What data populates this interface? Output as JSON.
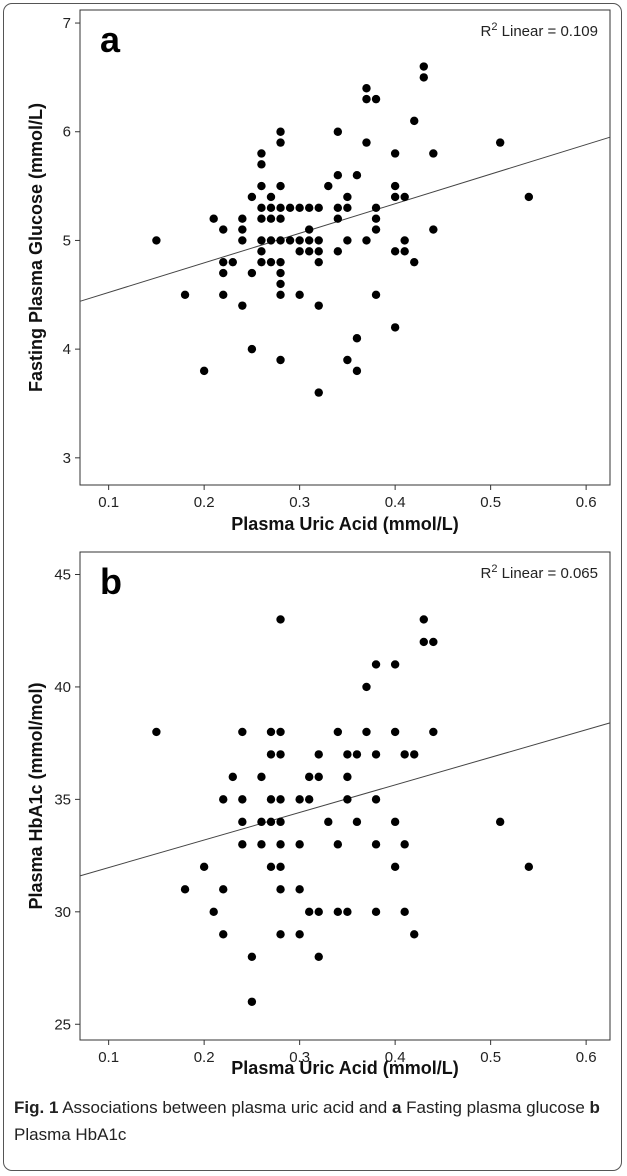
{
  "chart_data": [
    {
      "type": "scatter",
      "panel_label": "a",
      "xlabel": "Plasma Uric Acid (mmol/L)",
      "ylabel": "Fasting Plasma Glucose (mmol/L)",
      "xlim": [
        0.07,
        0.625
      ],
      "ylim": [
        2.75,
        7.12
      ],
      "xticks": [
        0.1,
        0.2,
        0.3,
        0.4,
        0.5,
        0.6
      ],
      "yticks": [
        3,
        4,
        5,
        6,
        7
      ],
      "xtick_labels": [
        "0.1",
        "0.2",
        "0.3",
        "0.4",
        "0.5",
        "0.6"
      ],
      "ytick_labels": [
        "3",
        "4",
        "5",
        "6",
        "7"
      ],
      "annotation": {
        "prefix": "R",
        "sup": "2",
        "text": " Linear = 0.109"
      },
      "fit_line": {
        "x": [
          0.07,
          0.625
        ],
        "y": [
          4.44,
          5.95
        ]
      },
      "points": [
        [
          0.15,
          5.0
        ],
        [
          0.18,
          4.5
        ],
        [
          0.2,
          3.8
        ],
        [
          0.21,
          5.2
        ],
        [
          0.22,
          5.1
        ],
        [
          0.22,
          4.8
        ],
        [
          0.22,
          4.7
        ],
        [
          0.22,
          4.5
        ],
        [
          0.23,
          4.8
        ],
        [
          0.24,
          5.2
        ],
        [
          0.24,
          5.1
        ],
        [
          0.24,
          5.0
        ],
        [
          0.24,
          4.4
        ],
        [
          0.25,
          5.4
        ],
        [
          0.25,
          4.7
        ],
        [
          0.25,
          4.0
        ],
        [
          0.26,
          5.8
        ],
        [
          0.26,
          5.7
        ],
        [
          0.26,
          5.5
        ],
        [
          0.26,
          5.3
        ],
        [
          0.26,
          5.2
        ],
        [
          0.26,
          5.0
        ],
        [
          0.26,
          4.9
        ],
        [
          0.26,
          4.8
        ],
        [
          0.27,
          5.4
        ],
        [
          0.27,
          5.3
        ],
        [
          0.27,
          5.2
        ],
        [
          0.27,
          5.0
        ],
        [
          0.27,
          4.8
        ],
        [
          0.28,
          6.0
        ],
        [
          0.28,
          5.9
        ],
        [
          0.28,
          5.5
        ],
        [
          0.28,
          5.3
        ],
        [
          0.28,
          5.2
        ],
        [
          0.28,
          5.0
        ],
        [
          0.28,
          4.8
        ],
        [
          0.28,
          4.7
        ],
        [
          0.28,
          4.6
        ],
        [
          0.28,
          4.5
        ],
        [
          0.28,
          3.9
        ],
        [
          0.29,
          5.3
        ],
        [
          0.29,
          5.0
        ],
        [
          0.3,
          5.3
        ],
        [
          0.3,
          5.0
        ],
        [
          0.3,
          4.9
        ],
        [
          0.3,
          4.5
        ],
        [
          0.31,
          5.3
        ],
        [
          0.31,
          5.1
        ],
        [
          0.31,
          5.0
        ],
        [
          0.31,
          4.9
        ],
        [
          0.32,
          5.3
        ],
        [
          0.32,
          5.0
        ],
        [
          0.32,
          4.9
        ],
        [
          0.32,
          4.8
        ],
        [
          0.32,
          4.4
        ],
        [
          0.32,
          3.6
        ],
        [
          0.33,
          5.5
        ],
        [
          0.34,
          6.0
        ],
        [
          0.34,
          5.6
        ],
        [
          0.34,
          5.3
        ],
        [
          0.34,
          5.2
        ],
        [
          0.34,
          4.9
        ],
        [
          0.35,
          5.4
        ],
        [
          0.35,
          5.3
        ],
        [
          0.35,
          5.0
        ],
        [
          0.35,
          3.9
        ],
        [
          0.36,
          5.6
        ],
        [
          0.36,
          4.1
        ],
        [
          0.36,
          3.8
        ],
        [
          0.37,
          6.4
        ],
        [
          0.37,
          6.3
        ],
        [
          0.37,
          5.9
        ],
        [
          0.37,
          5.0
        ],
        [
          0.38,
          6.3
        ],
        [
          0.38,
          5.3
        ],
        [
          0.38,
          5.2
        ],
        [
          0.38,
          5.1
        ],
        [
          0.38,
          4.5
        ],
        [
          0.4,
          5.8
        ],
        [
          0.4,
          5.5
        ],
        [
          0.4,
          5.4
        ],
        [
          0.4,
          4.9
        ],
        [
          0.4,
          4.2
        ],
        [
          0.41,
          5.4
        ],
        [
          0.41,
          5.0
        ],
        [
          0.41,
          4.9
        ],
        [
          0.42,
          6.1
        ],
        [
          0.42,
          4.8
        ],
        [
          0.43,
          6.6
        ],
        [
          0.43,
          6.5
        ],
        [
          0.44,
          5.8
        ],
        [
          0.44,
          5.1
        ],
        [
          0.51,
          5.9
        ],
        [
          0.54,
          5.4
        ]
      ]
    },
    {
      "type": "scatter",
      "panel_label": "b",
      "xlabel": "Plasma Uric Acid (mmol/L)",
      "ylabel": "Plasma HbA1c (mmol/mol)",
      "xlim": [
        0.07,
        0.625
      ],
      "ylim": [
        24.3,
        46.0
      ],
      "xticks": [
        0.1,
        0.2,
        0.3,
        0.4,
        0.5,
        0.6
      ],
      "yticks": [
        25,
        30,
        35,
        40,
        45
      ],
      "xtick_labels": [
        "0.1",
        "0.2",
        "0.3",
        "0.4",
        "0.5",
        "0.6"
      ],
      "ytick_labels": [
        "25",
        "30",
        "35",
        "40",
        "45"
      ],
      "annotation": {
        "prefix": "R",
        "sup": "2",
        "text": " Linear = 0.065"
      },
      "fit_line": {
        "x": [
          0.07,
          0.625
        ],
        "y": [
          31.6,
          38.4
        ]
      },
      "points": [
        [
          0.15,
          38
        ],
        [
          0.18,
          31
        ],
        [
          0.2,
          32
        ],
        [
          0.21,
          30
        ],
        [
          0.22,
          35
        ],
        [
          0.22,
          31
        ],
        [
          0.22,
          29
        ],
        [
          0.23,
          36
        ],
        [
          0.24,
          38
        ],
        [
          0.24,
          35
        ],
        [
          0.24,
          34
        ],
        [
          0.24,
          33
        ],
        [
          0.25,
          28
        ],
        [
          0.25,
          26
        ],
        [
          0.26,
          36
        ],
        [
          0.26,
          34
        ],
        [
          0.26,
          33
        ],
        [
          0.27,
          38
        ],
        [
          0.27,
          37
        ],
        [
          0.27,
          35
        ],
        [
          0.27,
          34
        ],
        [
          0.27,
          32
        ],
        [
          0.28,
          43
        ],
        [
          0.28,
          38
        ],
        [
          0.28,
          37
        ],
        [
          0.28,
          35
        ],
        [
          0.28,
          34
        ],
        [
          0.28,
          33
        ],
        [
          0.28,
          32
        ],
        [
          0.28,
          31
        ],
        [
          0.28,
          29
        ],
        [
          0.3,
          35
        ],
        [
          0.3,
          33
        ],
        [
          0.3,
          31
        ],
        [
          0.3,
          29
        ],
        [
          0.31,
          36
        ],
        [
          0.31,
          35
        ],
        [
          0.31,
          30
        ],
        [
          0.32,
          37
        ],
        [
          0.32,
          36
        ],
        [
          0.32,
          30
        ],
        [
          0.32,
          28
        ],
        [
          0.33,
          34
        ],
        [
          0.34,
          38
        ],
        [
          0.34,
          33
        ],
        [
          0.34,
          30
        ],
        [
          0.35,
          37
        ],
        [
          0.35,
          36
        ],
        [
          0.35,
          35
        ],
        [
          0.35,
          30
        ],
        [
          0.36,
          37
        ],
        [
          0.36,
          34
        ],
        [
          0.37,
          40
        ],
        [
          0.37,
          38
        ],
        [
          0.38,
          41
        ],
        [
          0.38,
          37
        ],
        [
          0.38,
          35
        ],
        [
          0.38,
          33
        ],
        [
          0.38,
          30
        ],
        [
          0.4,
          41
        ],
        [
          0.4,
          38
        ],
        [
          0.4,
          34
        ],
        [
          0.4,
          32
        ],
        [
          0.41,
          37
        ],
        [
          0.41,
          33
        ],
        [
          0.41,
          30
        ],
        [
          0.42,
          37
        ],
        [
          0.42,
          29
        ],
        [
          0.43,
          43
        ],
        [
          0.43,
          42
        ],
        [
          0.44,
          42
        ],
        [
          0.44,
          38
        ],
        [
          0.51,
          34
        ],
        [
          0.54,
          32
        ]
      ]
    }
  ],
  "caption": {
    "fig": "Fig. 1",
    "text1": " Associations between plasma uric acid and ",
    "a": "a",
    "text2": " Fasting plasma glucose ",
    "b": "b",
    "text3": " Plasma HbA1c"
  }
}
